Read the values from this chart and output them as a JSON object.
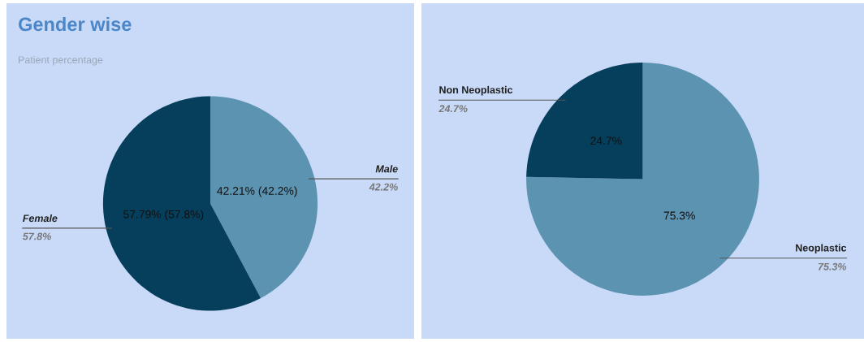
{
  "chart_data": [
    {
      "type": "pie",
      "title": "Gender wise",
      "subtitle": "Patient percentage",
      "categories": [
        "Male",
        "Female"
      ],
      "values": [
        42.21,
        57.79
      ],
      "colors": [
        "#5b93b0",
        "#063f5c"
      ],
      "value_labels": [
        "42.21% (42.2%)",
        "57.79% (57.8%)"
      ],
      "annotations": [
        "42.2%",
        "57.8%"
      ]
    },
    {
      "type": "pie",
      "categories": [
        "Neoplastic",
        "Non Neoplastic"
      ],
      "values": [
        75.3,
        24.7
      ],
      "colors": [
        "#5b93b0",
        "#063f5c"
      ],
      "value_labels": [
        "75.3%",
        "24.7%"
      ],
      "annotations": [
        "75.3%",
        "24.7%"
      ]
    }
  ]
}
